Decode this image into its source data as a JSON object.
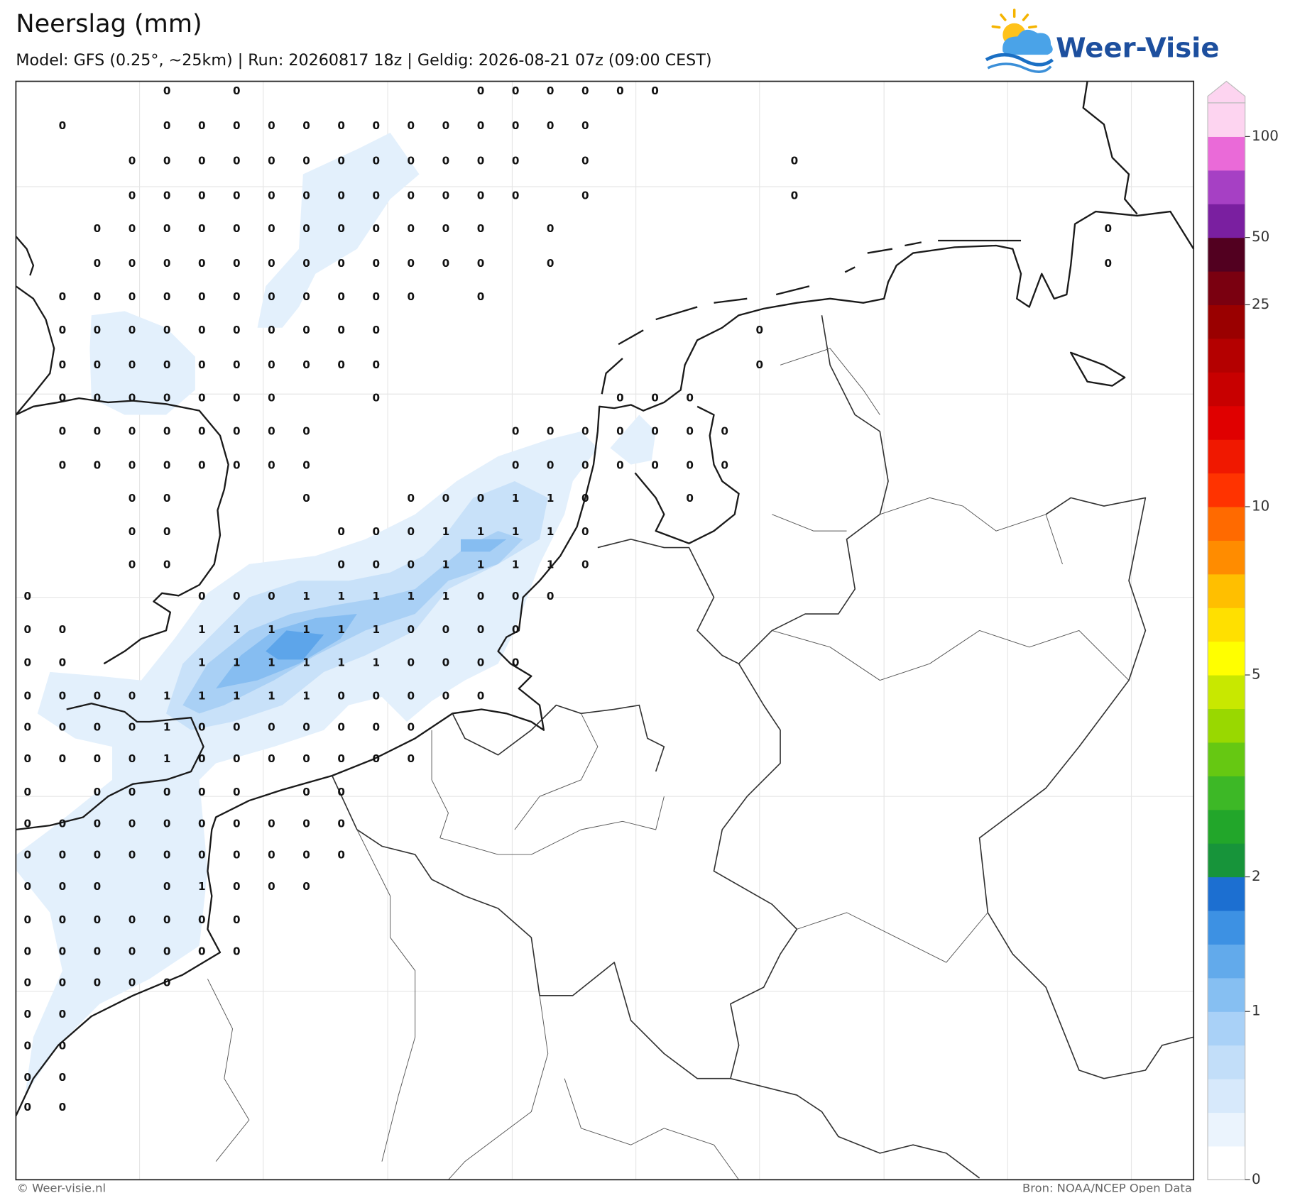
{
  "header": {
    "title": "Neerslag (mm)",
    "subtitle": "Model: GFS (0.25°, ~25km)  |  Run: 20260817 18z  |  Geldig: 2026-08-21 07z (09:00 CEST)"
  },
  "logo": {
    "text": "Weer-Visie"
  },
  "grid": {
    "rows": [
      [
        null,
        null,
        null,
        null,
        0,
        null,
        0,
        null,
        null,
        null,
        null,
        null,
        null,
        0,
        0,
        0,
        0,
        0,
        0
      ],
      [
        null,
        0,
        null,
        null,
        0,
        0,
        0,
        0,
        0,
        0,
        0,
        0,
        0,
        0,
        0,
        0,
        0
      ],
      [
        null,
        null,
        null,
        0,
        0,
        0,
        0,
        0,
        0,
        0,
        0,
        0,
        0,
        0,
        0,
        null,
        0,
        null,
        null,
        null,
        null,
        null,
        0
      ],
      [
        null,
        null,
        null,
        0,
        0,
        0,
        0,
        0,
        0,
        0,
        0,
        0,
        0,
        0,
        0,
        null,
        0,
        null,
        null,
        null,
        null,
        null,
        0
      ],
      [
        null,
        null,
        0,
        0,
        0,
        0,
        0,
        0,
        0,
        0,
        0,
        0,
        0,
        0,
        null,
        0,
        null,
        null,
        null,
        null,
        null,
        null,
        null,
        null,
        null,
        null,
        null,
        null,
        null,
        null,
        null,
        0
      ],
      [
        null,
        null,
        0,
        0,
        0,
        0,
        0,
        0,
        0,
        0,
        0,
        0,
        0,
        0,
        null,
        0,
        null,
        null,
        null,
        null,
        null,
        null,
        null,
        null,
        null,
        null,
        null,
        null,
        null,
        null,
        null,
        0
      ],
      [
        null,
        0,
        0,
        0,
        0,
        0,
        0,
        0,
        0,
        0,
        0,
        0,
        null,
        0
      ],
      [
        null,
        0,
        0,
        0,
        0,
        0,
        0,
        0,
        0,
        0,
        0,
        null,
        null,
        null,
        null,
        null,
        null,
        null,
        null,
        null,
        null,
        0
      ],
      [
        null,
        0,
        0,
        0,
        0,
        0,
        0,
        0,
        0,
        0,
        0,
        null,
        null,
        null,
        null,
        null,
        null,
        null,
        null,
        null,
        null,
        0
      ],
      [
        null,
        0,
        0,
        0,
        0,
        0,
        0,
        0,
        null,
        null,
        0,
        null,
        null,
        null,
        null,
        null,
        null,
        0,
        0,
        0
      ],
      [
        null,
        0,
        0,
        0,
        0,
        0,
        0,
        0,
        0,
        null,
        null,
        null,
        null,
        null,
        0,
        0,
        0,
        0,
        0,
        0,
        0
      ],
      [
        null,
        0,
        0,
        0,
        0,
        0,
        0,
        0,
        0,
        null,
        null,
        null,
        null,
        null,
        0,
        0,
        0,
        0,
        0,
        0,
        0
      ],
      [
        null,
        null,
        null,
        0,
        0,
        null,
        null,
        null,
        0,
        null,
        null,
        0,
        0,
        0,
        1,
        1,
        0,
        null,
        null,
        0
      ],
      [
        null,
        null,
        null,
        0,
        0,
        null,
        null,
        null,
        null,
        0,
        0,
        0,
        1,
        1,
        1,
        1,
        0
      ],
      [
        null,
        null,
        null,
        0,
        0,
        null,
        null,
        null,
        null,
        0,
        0,
        0,
        1,
        1,
        1,
        1,
        0
      ],
      [
        0,
        null,
        null,
        null,
        null,
        0,
        0,
        0,
        1,
        1,
        1,
        1,
        1,
        0,
        0,
        0
      ],
      [
        0,
        0,
        null,
        null,
        null,
        1,
        1,
        1,
        1,
        1,
        1,
        0,
        0,
        0,
        0
      ],
      [
        0,
        0,
        null,
        null,
        null,
        1,
        1,
        1,
        1,
        1,
        1,
        0,
        0,
        0,
        0
      ],
      [
        0,
        0,
        0,
        0,
        1,
        1,
        1,
        1,
        1,
        0,
        0,
        0,
        0,
        0
      ],
      [
        0,
        0,
        0,
        0,
        1,
        0,
        0,
        0,
        0,
        0,
        0,
        0
      ],
      [
        0,
        0,
        0,
        0,
        1,
        0,
        0,
        0,
        0,
        0,
        0,
        0
      ],
      [
        0,
        null,
        0,
        0,
        0,
        0,
        0,
        null,
        0,
        0
      ],
      [
        0,
        0,
        0,
        0,
        0,
        0,
        0,
        0,
        0,
        0
      ],
      [
        0,
        0,
        0,
        0,
        0,
        0,
        0,
        0,
        0,
        0
      ],
      [
        0,
        0,
        0,
        null,
        0,
        1,
        0,
        0,
        0
      ],
      [
        0,
        0,
        0,
        0,
        0,
        0,
        0
      ],
      [
        0,
        0,
        0,
        0,
        0,
        0,
        0
      ],
      [
        0,
        0,
        0,
        0,
        0
      ],
      [
        0,
        0
      ],
      [
        0,
        0
      ],
      [
        0,
        0
      ],
      [
        0,
        0
      ]
    ]
  },
  "colorbar": {
    "colors": [
      "#ffffff",
      "#ebf4fd",
      "#d7e9fb",
      "#c2def9",
      "#a9d1f7",
      "#86bff2",
      "#62aaeb",
      "#3d91e3",
      "#1c6fd1",
      "#17943a",
      "#22a62a",
      "#3db826",
      "#66c812",
      "#99d800",
      "#c8e800",
      "#ffff00",
      "#ffe000",
      "#ffbf00",
      "#ff8c00",
      "#ff6a00",
      "#ff3300",
      "#f01800",
      "#e00000",
      "#c80000",
      "#b40000",
      "#9a0000",
      "#7a0010",
      "#520020",
      "#7a1fa0",
      "#a640c4",
      "#ea6ad8",
      "#fdd4f0"
    ],
    "ticks": [
      0,
      1,
      2,
      5,
      10,
      25,
      50,
      100
    ]
  },
  "footer": {
    "copyright": "© Weer-visie.nl",
    "source": "Bron: NOAA/NCEP Open Data"
  }
}
